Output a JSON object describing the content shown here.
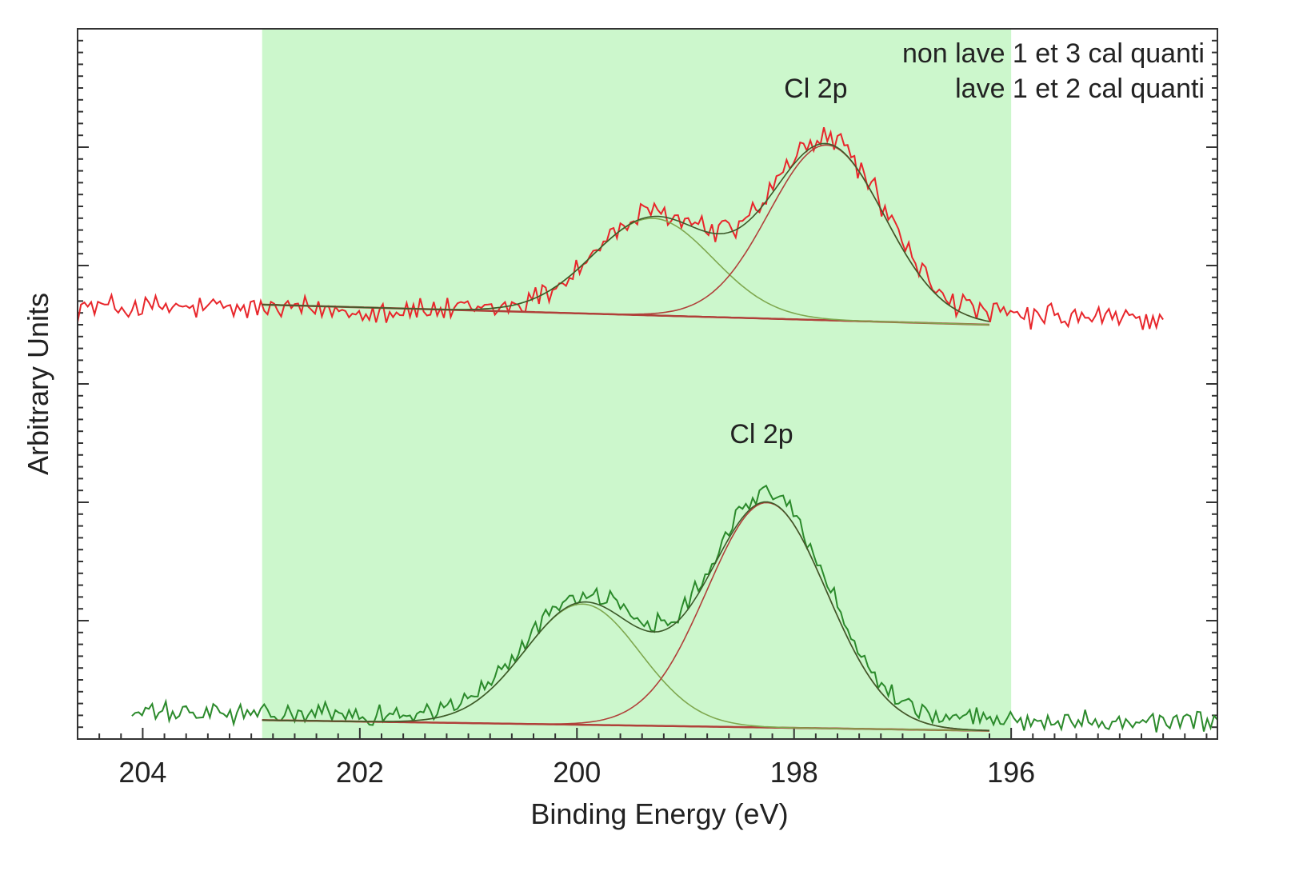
{
  "chart_data": {
    "type": "line",
    "title": "",
    "xlabel": "Binding Energy (eV)",
    "ylabel": "Arbitrary Units",
    "xlim": [
      204.6,
      194.1
    ],
    "ylim": [
      0,
      6
    ],
    "x_ticks": [
      204,
      202,
      200,
      198,
      196
    ],
    "x_tick_labels": [
      "204",
      "202",
      "200",
      "198",
      "196"
    ],
    "y_tick_labels_shown": false,
    "highlight_region": {
      "x_from": 202.9,
      "x_to": 196.0,
      "color": "#ccf7cc"
    },
    "legend_position": "top-right",
    "colors": {
      "red": "#e8262b",
      "green": "#2b8a2b",
      "fit_red": "#b0413a",
      "fit_green": "#7fa84f"
    },
    "annotations": [
      {
        "text": "Cl 2p",
        "x": 197.8,
        "y": 5.42
      },
      {
        "text": "Cl 2p",
        "x": 198.3,
        "y": 2.5
      }
    ],
    "series": [
      {
        "name": "non lave 1 et 3 cal quanti",
        "color": "#e8262b",
        "x_range": [
          204.6,
          194.6
        ],
        "baseline_left": 3.65,
        "baseline_right": 3.55,
        "fit_region": [
          202.9,
          196.2
        ],
        "fit_baseline_left": 3.67,
        "fit_baseline_right": 3.5,
        "peaks": [
          {
            "center": 199.3,
            "height": 0.82,
            "fwhm": 1.3
          },
          {
            "center": 197.7,
            "height": 1.48,
            "fwhm": 1.25
          }
        ],
        "noise": 0.09
      },
      {
        "name": "lave 1 et 2 cal quanti",
        "color": "#2b8a2b",
        "x_range": [
          204.1,
          194.1
        ],
        "baseline_left": 0.22,
        "baseline_right": 0.15,
        "fit_region": [
          202.9,
          196.2
        ],
        "fit_baseline_left": 0.16,
        "fit_baseline_right": 0.07,
        "peaks": [
          {
            "center": 199.95,
            "height": 1.02,
            "fwhm": 1.25
          },
          {
            "center": 198.25,
            "height": 1.9,
            "fwhm": 1.3
          }
        ],
        "noise": 0.07
      }
    ]
  }
}
